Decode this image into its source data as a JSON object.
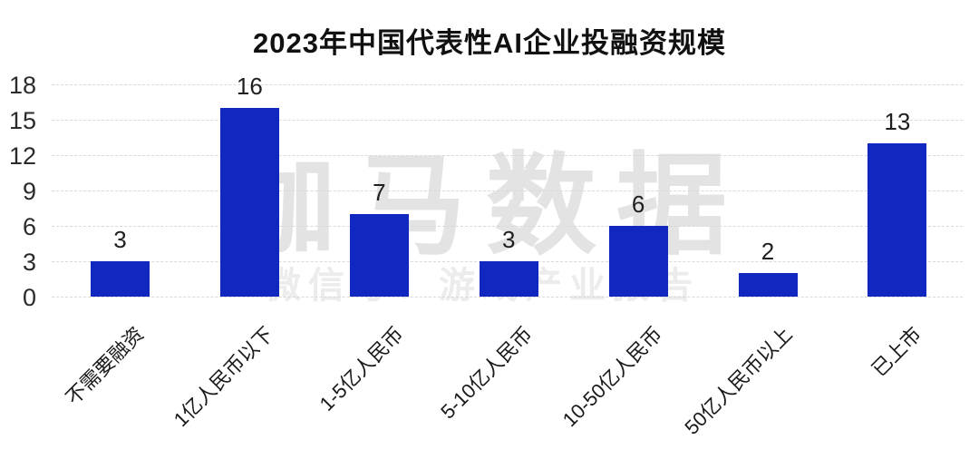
{
  "title": "2023年中国代表性AI企业投融资规模",
  "watermark": {
    "line1": "伽马数据",
    "line2": "微信号：游戏产业报告"
  },
  "colors": {
    "bar": "#1128c0",
    "gridline": "#d9d9d9",
    "title_text": "#111111",
    "axis_text": "#2b2b2b",
    "watermark_text": "#e3e3e3",
    "background": "#ffffff"
  },
  "chart_data": {
    "type": "bar",
    "title": "2023年中国代表性AI企业投融资规模",
    "categories": [
      "不需要融资",
      "1亿人民币以下",
      "1-5亿人民币",
      "5-10亿人民币",
      "10-50亿人民币",
      "50亿人民币以上",
      "已上市"
    ],
    "values": [
      3,
      16,
      7,
      3,
      6,
      2,
      13
    ],
    "data_labels": [
      "3",
      "16",
      "7",
      "3",
      "6",
      "2",
      "13"
    ],
    "y_ticks": [
      0,
      3,
      6,
      9,
      12,
      15,
      18
    ],
    "ylim": [
      0,
      18
    ],
    "xlabel": "",
    "ylabel": "",
    "grid": "horizontal-dashed",
    "legend": "none",
    "bar_color": "#1128c0",
    "x_label_rotation_deg": 45
  }
}
